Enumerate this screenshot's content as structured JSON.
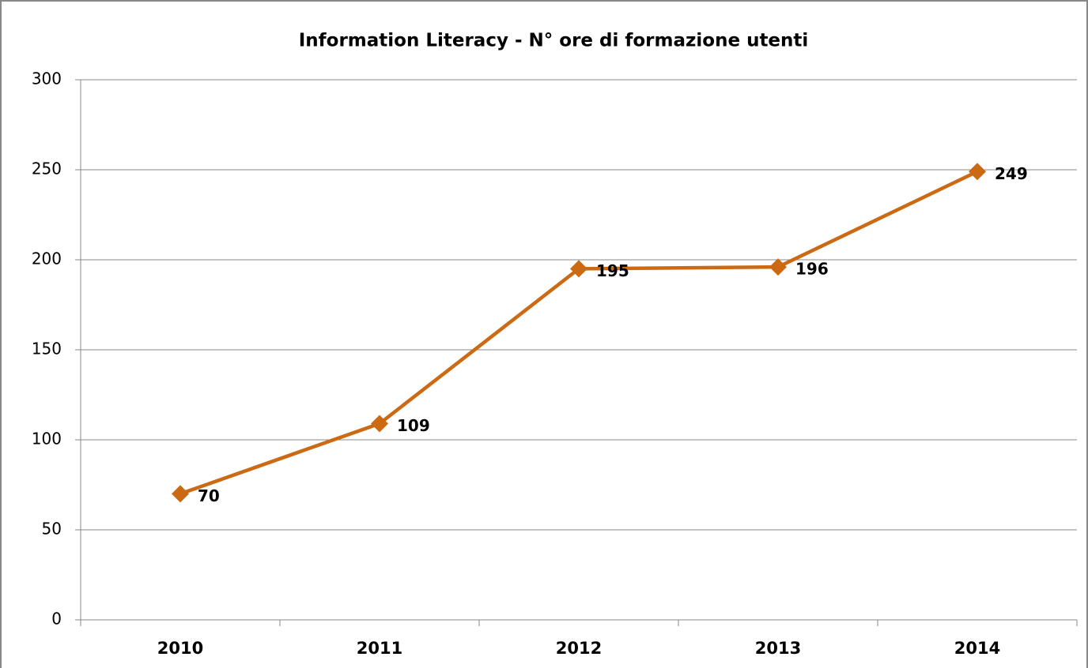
{
  "chart_data": {
    "type": "line",
    "title": "Information Literacy - N° ore di formazione utenti",
    "categories": [
      "2010",
      "2011",
      "2012",
      "2013",
      "2014"
    ],
    "series": [
      {
        "name": "N° ore",
        "color": "#cc6a14",
        "values": [
          70,
          109,
          195,
          196,
          249
        ]
      }
    ],
    "ylim": [
      0,
      300
    ],
    "yticks": [
      0,
      50,
      100,
      150,
      200,
      250,
      300
    ],
    "grid": true,
    "data_labels": true
  }
}
